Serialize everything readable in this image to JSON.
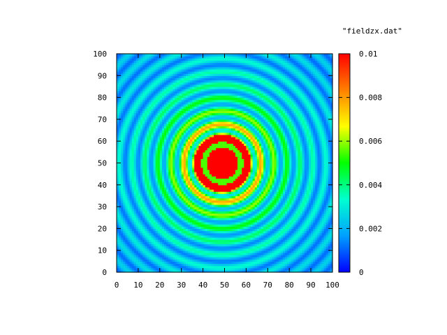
{
  "chart_data": {
    "type": "heatmap",
    "title": "",
    "legend_entry": "\"fieldzx.dat\"",
    "xlabel": "",
    "ylabel": "",
    "xlim": [
      0,
      100
    ],
    "ylim": [
      0,
      100
    ],
    "x_ticks": [
      "0",
      "10",
      "20",
      "30",
      "40",
      "50",
      "60",
      "70",
      "80",
      "90",
      "100"
    ],
    "y_ticks": [
      "0",
      "10",
      "20",
      "30",
      "40",
      "50",
      "60",
      "70",
      "80",
      "90",
      "100"
    ],
    "colorbar": {
      "range": [
        0,
        0.01
      ],
      "ticks": [
        "0",
        "0.002",
        "0.004",
        "0.006",
        "0.008",
        "0.01"
      ],
      "palette": [
        "#0000ff",
        "#00a0ff",
        "#00ffd0",
        "#00ff00",
        "#ffff00",
        "#ff8000",
        "#ff0000"
      ]
    },
    "field": {
      "grid_size": 100,
      "center": [
        49,
        50
      ],
      "saturated_radius": 13,
      "description_values": "radial oscillating amplitude, saturated (>=0.01) near center, decaying to ~0.001-0.003 at edges",
      "ring_period": 6.0,
      "amplitude_scale": 0.0235,
      "offset": 0.0006,
      "saturated_inner_radius": 6.5,
      "green_ring_radius": 8.5,
      "green_ring_value": 0.0055
    },
    "grid": false,
    "legend_position": "top-right"
  }
}
